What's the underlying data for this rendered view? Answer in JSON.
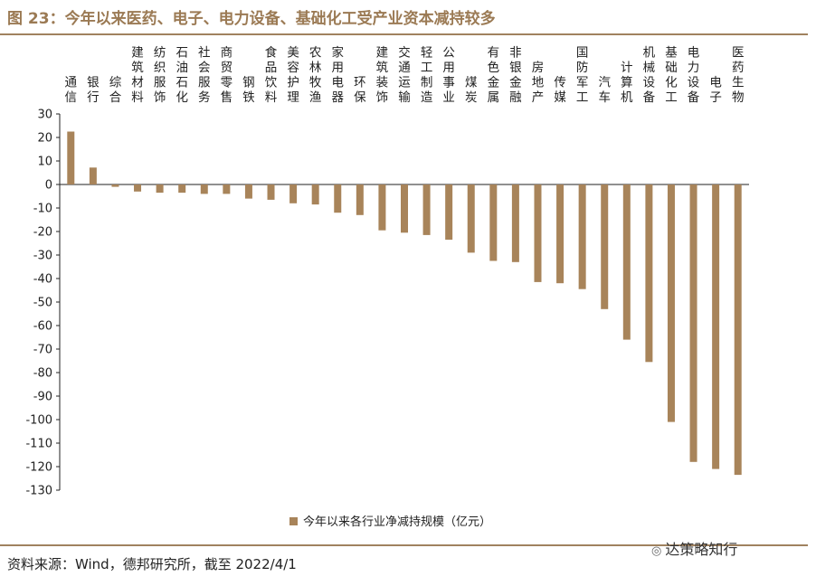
{
  "header": {
    "title": "图 23：今年以来医药、电子、电力设备、基础化工受产业资本减持较多"
  },
  "footer": {
    "source": "资料来源：Wind，德邦研究所，截至 2022/4/1",
    "watermark": "达策略知行",
    "watermark_icon": "wechat-icon"
  },
  "chart_data": {
    "type": "bar",
    "categories": [
      "通信",
      "银行",
      "综合",
      "建筑材料",
      "纺织服饰",
      "石油石化",
      "社会服务",
      "商贸零售",
      "钢铁",
      "食品饮料",
      "美容护理",
      "农林牧渔",
      "家用电器",
      "环保",
      "建筑装饰",
      "交通运输",
      "轻工制造",
      "公用事业",
      "煤炭",
      "有色金属",
      "非银金融",
      "房地产",
      "传媒",
      "国防军工",
      "汽车",
      "计算机",
      "机械设备",
      "基础化工",
      "电力设备",
      "电子",
      "医药生物"
    ],
    "series": [
      {
        "name": "今年以来各行业净减持规模（亿元）",
        "color": "#a8845a",
        "values": [
          22.5,
          7.2,
          -1,
          -3,
          -3.5,
          -3.5,
          -4,
          -4,
          -6,
          -6.5,
          -8,
          -8.5,
          -12,
          -13,
          -19.5,
          -20.5,
          -21.5,
          -23.5,
          -29,
          -32.5,
          -33,
          -41.5,
          -42,
          -44.5,
          -53,
          -66,
          -75.5,
          -101,
          -118,
          -121,
          -123.5
        ]
      }
    ],
    "yticks": [
      30,
      20,
      10,
      0,
      -10,
      -20,
      -30,
      -40,
      -50,
      -60,
      -70,
      -80,
      -90,
      -100,
      -110,
      -120,
      -130
    ],
    "ylim": [
      -130,
      30
    ],
    "xlabel": "",
    "ylabel": "",
    "grid": false,
    "legend_position": "bottom"
  }
}
